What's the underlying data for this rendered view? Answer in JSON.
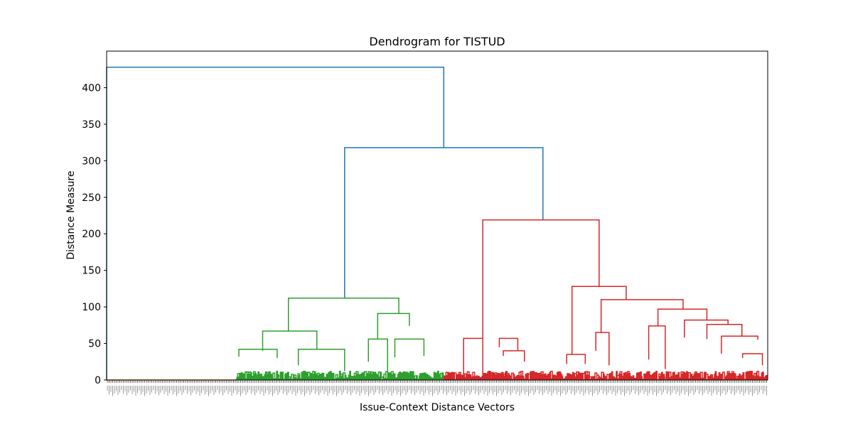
{
  "chart_data": {
    "type": "dendrogram",
    "title": "Dendrogram for TISTUD",
    "xlabel": "Issue-Context Distance Vectors",
    "ylabel": "Distance Measure",
    "ylim": [
      0,
      450
    ],
    "yticks": [
      0,
      50,
      100,
      150,
      200,
      250,
      300,
      350,
      400
    ],
    "grid": false,
    "legend": "none",
    "colors": {
      "orange": "#ff7f0e",
      "green": "#2ca02c",
      "red": "#d62728",
      "blue": "#1f77b4"
    },
    "leaf_domain": [
      0,
      1000
    ],
    "merges": [
      {
        "color": "blue",
        "x": [
          0,
          0,
          510,
          510
        ],
        "y": [
          0,
          428,
          428,
          318
        ]
      },
      {
        "color": "blue",
        "x": [
          360,
          360,
          660,
          660
        ],
        "y": [
          112,
          318,
          318,
          219
        ]
      },
      {
        "color": "green",
        "x": [
          275,
          275,
          442,
          442
        ],
        "y": [
          67,
          112,
          112,
          91
        ]
      },
      {
        "color": "green",
        "x": [
          236,
          236,
          318,
          318
        ],
        "y": [
          40,
          67,
          67,
          42
        ]
      },
      {
        "color": "green",
        "x": [
          410,
          410,
          458,
          458
        ],
        "y": [
          56,
          91,
          91,
          74
        ]
      },
      {
        "color": "red",
        "x": [
          569,
          569,
          745,
          745
        ],
        "y": [
          57,
          219,
          219,
          128
        ]
      },
      {
        "color": "red",
        "x": [
          704,
          704,
          786,
          786
        ],
        "y": [
          35,
          128,
          128,
          110
        ]
      },
      {
        "color": "red",
        "x": [
          748,
          748,
          872,
          872
        ],
        "y": [
          65,
          110,
          110,
          97
        ]
      },
      {
        "color": "red",
        "x": [
          834,
          834,
          908,
          908
        ],
        "y": [
          74,
          97,
          97,
          82
        ]
      },
      {
        "color": "red",
        "x": [
          874,
          874,
          940,
          940
        ],
        "y": [
          58,
          82,
          82,
          76
        ]
      },
      {
        "color": "red",
        "x": [
          908,
          908,
          961,
          961
        ],
        "y": [
          56,
          76,
          76,
          60
        ]
      },
      {
        "color": "red",
        "x": [
          930,
          930,
          985,
          985
        ],
        "y": [
          36,
          60,
          60,
          55
        ]
      },
      {
        "color": "green",
        "x": [
          200,
          200,
          258,
          258
        ],
        "y": [
          32,
          42,
          42,
          30
        ]
      },
      {
        "color": "green",
        "x": [
          290,
          290,
          360,
          360
        ],
        "y": [
          20,
          42,
          42,
          12
        ]
      },
      {
        "color": "green",
        "x": [
          436,
          436,
          480,
          480
        ],
        "y": [
          31,
          56,
          56,
          33
        ]
      },
      {
        "color": "green",
        "x": [
          396,
          396,
          425,
          425
        ],
        "y": [
          25,
          56,
          56,
          10
        ]
      },
      {
        "color": "red",
        "x": [
          594,
          594,
          622,
          622
        ],
        "y": [
          45,
          57,
          57,
          40
        ]
      },
      {
        "color": "red",
        "x": [
          540,
          540,
          569,
          569
        ],
        "y": [
          7,
          57,
          57,
          7
        ]
      },
      {
        "color": "red",
        "x": [
          696,
          696,
          724,
          724
        ],
        "y": [
          22,
          35,
          35,
          22
        ]
      },
      {
        "color": "red",
        "x": [
          740,
          740,
          760,
          760
        ],
        "y": [
          40,
          65,
          65,
          20
        ]
      },
      {
        "color": "red",
        "x": [
          820,
          820,
          845,
          845
        ],
        "y": [
          28,
          74,
          74,
          15
        ]
      },
      {
        "color": "red",
        "x": [
          962,
          962,
          992,
          992
        ],
        "y": [
          30,
          36,
          36,
          20
        ]
      },
      {
        "color": "red",
        "x": [
          600,
          600,
          632,
          632
        ],
        "y": [
          33,
          40,
          40,
          25
        ]
      }
    ],
    "leaves": [
      {
        "color": "orange",
        "from": 0,
        "to": 195,
        "height": 1.5
      },
      {
        "color": "green",
        "from": 195,
        "to": 510,
        "height": 12
      },
      {
        "color": "red",
        "from": 510,
        "to": 1000,
        "height": 12
      }
    ]
  }
}
